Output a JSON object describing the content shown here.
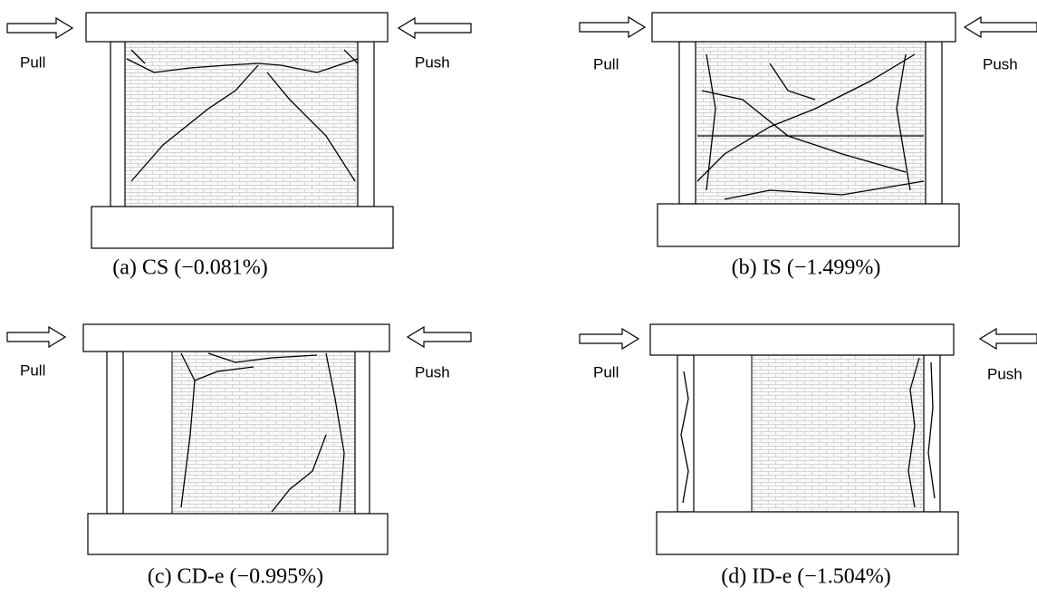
{
  "panels": [
    {
      "pull": "Pull",
      "push": "Push",
      "caption": "(a) CS (−0.081%)"
    },
    {
      "pull": "Pull",
      "push": "Push",
      "caption": "(b) IS (−1.499%)"
    },
    {
      "pull": "Pull",
      "push": "Push",
      "caption": "(c) CD-e (−0.995%)"
    },
    {
      "pull": "Pull",
      "push": "Push",
      "caption": "(d) ID-e (−1.504%)"
    }
  ]
}
